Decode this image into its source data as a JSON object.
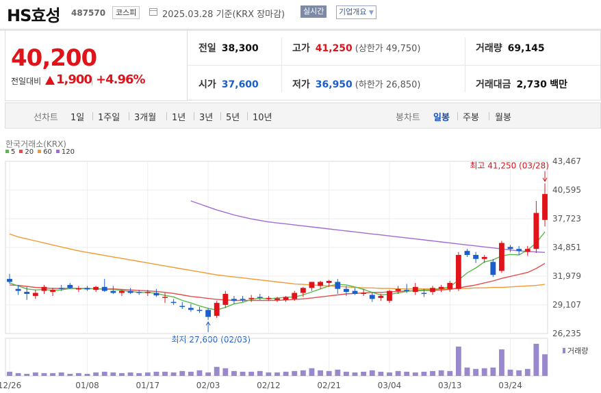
{
  "header": {
    "name": "HS효성",
    "code": "487570",
    "market": "코스피",
    "date": "2025.03.28 기준(KRX 장마감)",
    "realtime_btn": "실시간",
    "corp_btn": "기업개요"
  },
  "price": {
    "current": "40,200",
    "change_label": "전일대비",
    "change": "1,900",
    "rate": "+4.96%"
  },
  "stats": {
    "prev_label": "전일",
    "prev": "38,300",
    "high_label": "고가",
    "high": "41,250",
    "upper_label": "(상한가",
    "upper": "49,750)",
    "volume_label": "거래량",
    "volume": "69,145",
    "open_label": "시가",
    "open": "37,600",
    "low_label": "저가",
    "low": "36,950",
    "lower_label": "(하한가",
    "lower": "26,850)",
    "amount_label": "거래대금",
    "amount": "2,730",
    "amount_unit": "백만"
  },
  "toolbar": {
    "line_label": "선차트",
    "periods": [
      "1일",
      "1주일",
      "3개월",
      "1년",
      "3년",
      "5년",
      "10년"
    ],
    "candle_label": "봉차트",
    "candle_periods": [
      "일봉",
      "주봉",
      "월봉"
    ]
  },
  "chart_source": "한국거래소(KRX)",
  "colors": {
    "up": "#e0131b",
    "down": "#1a5ecc",
    "ma5": "#59b94a",
    "ma20": "#e84a4a",
    "ma60": "#f39a32",
    "ma120": "#a26ad4",
    "volume": "#9988cc"
  },
  "chart_data": {
    "type": "candlestick",
    "legend": [
      {
        "name": "5",
        "color": "#59b94a"
      },
      {
        "name": "20",
        "color": "#e84a4a"
      },
      {
        "name": "60",
        "color": "#f39a32"
      },
      {
        "name": "120",
        "color": "#a26ad4"
      }
    ],
    "y_ticks": [
      "43,467",
      "40,595",
      "37,723",
      "34,851",
      "31,979",
      "29,107",
      "26,235"
    ],
    "y_tick_values": [
      43467,
      40595,
      37723,
      34851,
      31979,
      29107,
      26235
    ],
    "ylim": [
      26235,
      43467
    ],
    "x_labels": [
      "12/26",
      "01/08",
      "01/17",
      "02/03",
      "02/12",
      "02/21",
      "03/04",
      "03/13",
      "03/24"
    ],
    "x_label_index": [
      0,
      9,
      16,
      23,
      30,
      37,
      44,
      51,
      58
    ],
    "max_annotation": "최고 41,250 (03/28)",
    "min_annotation": "최저 27,600 (02/03)",
    "volume_label": "거래량",
    "candles": [
      {
        "o": 31700,
        "h": 32200,
        "l": 31200,
        "c": 31400
      },
      {
        "o": 30700,
        "h": 31100,
        "l": 30100,
        "c": 30500
      },
      {
        "o": 30400,
        "h": 30900,
        "l": 29600,
        "c": 30200
      },
      {
        "o": 30000,
        "h": 30600,
        "l": 29700,
        "c": 30300
      },
      {
        "o": 30500,
        "h": 31100,
        "l": 30200,
        "c": 30900
      },
      {
        "o": 30400,
        "h": 30800,
        "l": 30000,
        "c": 30600
      },
      {
        "o": 30800,
        "h": 31100,
        "l": 30500,
        "c": 30700
      },
      {
        "o": 31100,
        "h": 31300,
        "l": 30700,
        "c": 30800
      },
      {
        "o": 30700,
        "h": 31000,
        "l": 30400,
        "c": 30750
      },
      {
        "o": 30800,
        "h": 31000,
        "l": 30500,
        "c": 30650
      },
      {
        "o": 30600,
        "h": 31000,
        "l": 30400,
        "c": 30900
      },
      {
        "o": 30900,
        "h": 31700,
        "l": 30400,
        "c": 30500
      },
      {
        "o": 30500,
        "h": 31000,
        "l": 30200,
        "c": 30300
      },
      {
        "o": 30300,
        "h": 30600,
        "l": 30000,
        "c": 30500
      },
      {
        "o": 30500,
        "h": 30800,
        "l": 30200,
        "c": 30300
      },
      {
        "o": 30400,
        "h": 30600,
        "l": 30100,
        "c": 30300
      },
      {
        "o": 30300,
        "h": 30600,
        "l": 30000,
        "c": 30400
      },
      {
        "o": 30300,
        "h": 30700,
        "l": 29900,
        "c": 30050
      },
      {
        "o": 29800,
        "h": 30300,
        "l": 29300,
        "c": 29900
      },
      {
        "o": 29400,
        "h": 29700,
        "l": 29100,
        "c": 29350
      },
      {
        "o": 29000,
        "h": 29400,
        "l": 28700,
        "c": 28900
      },
      {
        "o": 28800,
        "h": 29200,
        "l": 28400,
        "c": 28600
      },
      {
        "o": 28600,
        "h": 28900,
        "l": 28300,
        "c": 28500
      },
      {
        "o": 28600,
        "h": 28800,
        "l": 27600,
        "c": 27900
      },
      {
        "o": 28000,
        "h": 29500,
        "l": 27800,
        "c": 29300
      },
      {
        "o": 29100,
        "h": 30500,
        "l": 28800,
        "c": 30200
      },
      {
        "o": 29700,
        "h": 30000,
        "l": 29200,
        "c": 29500
      },
      {
        "o": 29700,
        "h": 30000,
        "l": 29400,
        "c": 29600
      },
      {
        "o": 29700,
        "h": 30100,
        "l": 29400,
        "c": 29800
      },
      {
        "o": 29900,
        "h": 30200,
        "l": 29600,
        "c": 29800
      },
      {
        "o": 29700,
        "h": 30000,
        "l": 29500,
        "c": 29800
      },
      {
        "o": 29600,
        "h": 29900,
        "l": 29400,
        "c": 29750
      },
      {
        "o": 29600,
        "h": 30000,
        "l": 29400,
        "c": 29900
      },
      {
        "o": 29700,
        "h": 30500,
        "l": 29500,
        "c": 30300
      },
      {
        "o": 30300,
        "h": 30900,
        "l": 29900,
        "c": 30800
      },
      {
        "o": 30800,
        "h": 31400,
        "l": 30500,
        "c": 31400
      },
      {
        "o": 31000,
        "h": 31500,
        "l": 30700,
        "c": 31400
      },
      {
        "o": 31300,
        "h": 31600,
        "l": 30900,
        "c": 31500
      },
      {
        "o": 31400,
        "h": 31700,
        "l": 30200,
        "c": 30700
      },
      {
        "o": 30700,
        "h": 31000,
        "l": 30000,
        "c": 30400
      },
      {
        "o": 30500,
        "h": 30800,
        "l": 30100,
        "c": 30200
      },
      {
        "o": 30200,
        "h": 30700,
        "l": 30000,
        "c": 30300
      },
      {
        "o": 30100,
        "h": 30400,
        "l": 29400,
        "c": 29700
      },
      {
        "o": 29800,
        "h": 30200,
        "l": 29500,
        "c": 30000
      },
      {
        "o": 29500,
        "h": 30600,
        "l": 29300,
        "c": 30500
      },
      {
        "o": 30500,
        "h": 31000,
        "l": 30200,
        "c": 30700
      },
      {
        "o": 30600,
        "h": 31200,
        "l": 30300,
        "c": 30500
      },
      {
        "o": 30400,
        "h": 31300,
        "l": 30100,
        "c": 30900
      },
      {
        "o": 30300,
        "h": 30700,
        "l": 29900,
        "c": 30200
      },
      {
        "o": 30400,
        "h": 31000,
        "l": 30100,
        "c": 30800
      },
      {
        "o": 30700,
        "h": 31100,
        "l": 30400,
        "c": 30900
      },
      {
        "o": 30700,
        "h": 31500,
        "l": 30400,
        "c": 31300
      },
      {
        "o": 30700,
        "h": 34400,
        "l": 30500,
        "c": 34100
      },
      {
        "o": 34500,
        "h": 34700,
        "l": 33900,
        "c": 34100
      },
      {
        "o": 34100,
        "h": 34400,
        "l": 33300,
        "c": 33700
      },
      {
        "o": 33700,
        "h": 34100,
        "l": 33300,
        "c": 33900
      },
      {
        "o": 33400,
        "h": 33700,
        "l": 31900,
        "c": 32100
      },
      {
        "o": 32500,
        "h": 35500,
        "l": 32300,
        "c": 35300
      },
      {
        "o": 34900,
        "h": 35100,
        "l": 34400,
        "c": 34700
      },
      {
        "o": 34700,
        "h": 35000,
        "l": 34100,
        "c": 34500
      },
      {
        "o": 34400,
        "h": 35000,
        "l": 34000,
        "c": 34700
      },
      {
        "o": 34700,
        "h": 39500,
        "l": 34300,
        "c": 38300
      },
      {
        "o": 37600,
        "h": 41250,
        "l": 36950,
        "c": 40200
      }
    ],
    "ma5": [
      31300,
      31000,
      30700,
      30600,
      30650,
      30550,
      30600,
      30750,
      30750,
      30700,
      30750,
      30650,
      30650,
      30550,
      30450,
      30350,
      30350,
      30250,
      30050,
      29900,
      29550,
      29300,
      29000,
      28750,
      28600,
      28850,
      29200,
      29350,
      29650,
      29800,
      29700,
      29800,
      29850,
      29900,
      30100,
      30400,
      30700,
      31000,
      31150,
      31100,
      30900,
      30650,
      30350,
      30100,
      30150,
      30300,
      30450,
      30550,
      30600,
      30600,
      30750,
      30900,
      31600,
      32300,
      32800,
      33400,
      33600,
      34000,
      34150,
      34100,
      34600,
      35300,
      36400
    ],
    "ma20": [
      31100,
      31050,
      30950,
      30850,
      30800,
      30750,
      30750,
      30750,
      30750,
      30750,
      30700,
      30700,
      30700,
      30650,
      30600,
      30550,
      30500,
      30450,
      30350,
      30250,
      30100,
      29950,
      29850,
      29750,
      29650,
      29600,
      29550,
      29550,
      29550,
      29550,
      29550,
      29550,
      29600,
      29650,
      29700,
      29800,
      29900,
      30000,
      30100,
      30200,
      30250,
      30300,
      30350,
      30350,
      30400,
      30450,
      30500,
      30500,
      30550,
      30550,
      30600,
      30650,
      30800,
      30950,
      31100,
      31300,
      31500,
      31750,
      31950,
      32150,
      32350,
      32750,
      33250
    ],
    "ma60": [
      36200,
      35900,
      35700,
      35500,
      35300,
      35100,
      34900,
      34700,
      34500,
      34350,
      34200,
      34050,
      33900,
      33750,
      33600,
      33450,
      33300,
      33150,
      33000,
      32850,
      32700,
      32550,
      32400,
      32250,
      32100,
      32000,
      31900,
      31800,
      31700,
      31600,
      31500,
      31400,
      31300,
      31200,
      31150,
      31100,
      31050,
      31000,
      30950,
      30900,
      30850,
      30800,
      30800,
      30750,
      30750,
      30700,
      30700,
      30700,
      30700,
      30700,
      30700,
      30700,
      30750,
      30750,
      30800,
      30800,
      30850,
      30850,
      30900,
      30950,
      31000,
      31050,
      31150
    ],
    "ma120": [
      null,
      null,
      null,
      null,
      null,
      null,
      null,
      null,
      null,
      null,
      null,
      null,
      null,
      null,
      null,
      null,
      null,
      null,
      null,
      null,
      null,
      null,
      null,
      null,
      null,
      null,
      null,
      null,
      null,
      null,
      null,
      null,
      null,
      null,
      null,
      null,
      null,
      null,
      null,
      null,
      null,
      null,
      null,
      null,
      null,
      null,
      null,
      null,
      null,
      null,
      null,
      null,
      null,
      null,
      null,
      null,
      null,
      null,
      null,
      null,
      null,
      null,
      null
    ],
    "ma120_visible_from": 21,
    "ma120_tail": [
      39500,
      39200,
      38900,
      38600,
      38350,
      38100,
      37900,
      37700,
      37550,
      37400,
      37300,
      37200,
      37100,
      37000,
      36900,
      36800,
      36700,
      36600,
      36500,
      36400,
      36300,
      36200,
      36100,
      36000,
      35900,
      35800,
      35700,
      35600,
      35500,
      35400,
      35300,
      35200,
      35100,
      35000,
      34900,
      34800,
      34700,
      34600,
      34500,
      34450,
      34400,
      34350
    ],
    "volumes": [
      6,
      4,
      3,
      5,
      4,
      4,
      5,
      3,
      4,
      3,
      5,
      6,
      5,
      4,
      5,
      4,
      5,
      6,
      6,
      5,
      7,
      6,
      8,
      5,
      13,
      11,
      7,
      6,
      6,
      7,
      5,
      5,
      6,
      7,
      8,
      11,
      8,
      7,
      9,
      6,
      5,
      6,
      8,
      6,
      5,
      7,
      6,
      5,
      6,
      7,
      8,
      7,
      42,
      12,
      10,
      11,
      12,
      38,
      9,
      8,
      10,
      46,
      31
    ],
    "volume_max": 46
  }
}
